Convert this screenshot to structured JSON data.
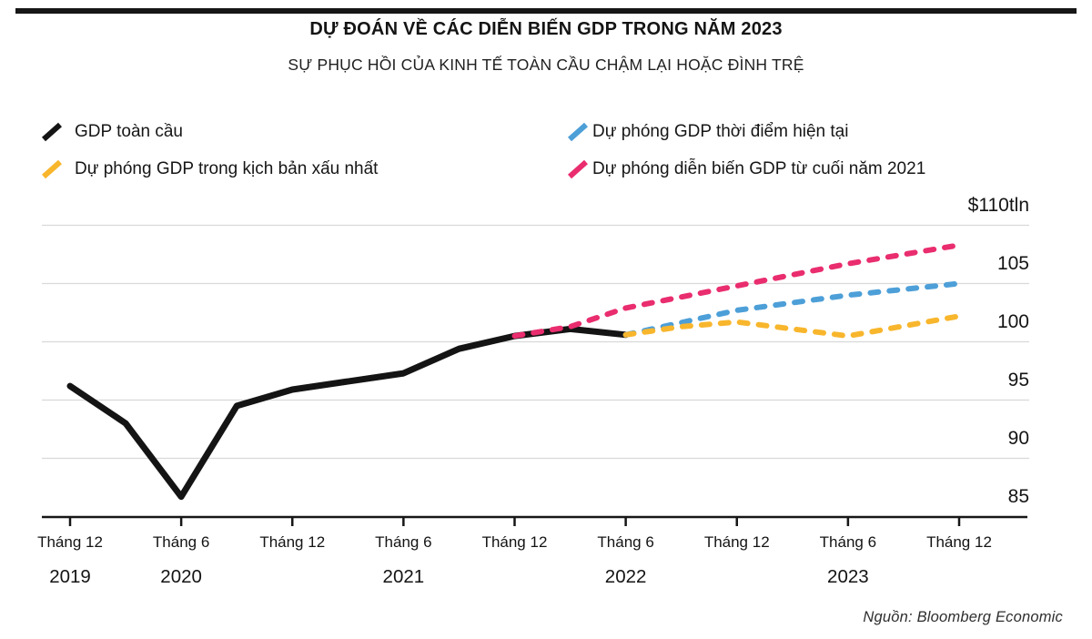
{
  "header": {
    "title": "DỰ ĐOÁN VỀ CÁC DIỄN BIẾN GDP TRONG NĂM 2023",
    "subtitle": "SỰ PHỤC HỒI CỦA KINH TẾ TOÀN CẦU CHẬM LẠI HOẶC ĐÌNH TRỆ"
  },
  "legend": {
    "items": [
      {
        "label": "GDP toàn cầu",
        "color": "#141414"
      },
      {
        "label": "Dự phóng GDP trong kịch bản xấu nhất",
        "color": "#f8b62d"
      },
      {
        "label": "Dự phóng GDP thời điểm hiện tại",
        "color": "#4d9fd8"
      },
      {
        "label": "Dự phóng diễn biến GDP từ cuối năm 2021",
        "color": "#e92d6e"
      }
    ]
  },
  "source": "Nguồn: Bloomberg Economic",
  "colors": {
    "actual": "#141414",
    "worst_case": "#f8b62d",
    "current_forecast": "#4d9fd8",
    "late_2021_forecast": "#e92d6e",
    "grid": "#d9d9d9",
    "axis": "#161616"
  },
  "chart_data": {
    "type": "line",
    "title": "DỰ ĐOÁN VỀ CÁC DIỄN BIẾN GDP TRONG NĂM 2023",
    "subtitle": "SỰ PHỤC HỒI CỦA KINH TẾ TOÀN CẦU CHẬM LẠI HOẶC ĐÌNH TRỆ",
    "unit": "$ trillion",
    "grid": true,
    "legend_position": "top",
    "y_axis": {
      "range": [
        85,
        110
      ],
      "ticks": [
        110,
        105,
        100,
        95,
        90,
        85
      ],
      "tick_labels": [
        "$110tln",
        "105",
        "100",
        "95",
        "90",
        "85"
      ]
    },
    "x_axis": {
      "months_per_tick": 6,
      "tick_labels": [
        "Tháng 12",
        "Tháng 6",
        "Tháng 12",
        "Tháng 6",
        "Tháng 12",
        "Tháng 6",
        "Tháng 12",
        "Tháng 6",
        "Tháng 12"
      ],
      "year_labels": [
        {
          "text": "2019",
          "tick": 0
        },
        {
          "text": "2020",
          "tick": 1
        },
        {
          "text": "2021",
          "tick": 3
        },
        {
          "text": "2022",
          "tick": 5
        },
        {
          "text": "2023",
          "tick": 7
        }
      ]
    },
    "series": [
      {
        "name": "GDP toàn cầu",
        "color": "#141414",
        "dashed": false,
        "points_months_vs_tln": [
          [
            0,
            96.2
          ],
          [
            3,
            93.0
          ],
          [
            6,
            86.7
          ],
          [
            9,
            94.5
          ],
          [
            12,
            95.9
          ],
          [
            18,
            97.3
          ],
          [
            21,
            99.4
          ],
          [
            24,
            100.5
          ],
          [
            27,
            101.1
          ],
          [
            30,
            100.6
          ]
        ]
      },
      {
        "name": "Dự phóng diễn biến GDP từ cuối năm 2021",
        "color": "#e92d6e",
        "dashed": true,
        "points_months_vs_tln": [
          [
            24,
            100.5
          ],
          [
            27,
            101.3
          ],
          [
            30,
            102.9
          ],
          [
            36,
            104.8
          ],
          [
            42,
            106.7
          ],
          [
            48,
            108.3
          ]
        ]
      },
      {
        "name": "Dự phóng GDP thời điểm hiện tại",
        "color": "#4d9fd8",
        "dashed": true,
        "points_months_vs_tln": [
          [
            30,
            100.6
          ],
          [
            36,
            102.7
          ],
          [
            42,
            104.0
          ],
          [
            48,
            105.0
          ]
        ]
      },
      {
        "name": "Dự phóng GDP trong kịch bản xấu nhất",
        "color": "#f8b62d",
        "dashed": true,
        "points_months_vs_tln": [
          [
            30,
            100.6
          ],
          [
            33,
            101.3
          ],
          [
            36,
            101.7
          ],
          [
            42,
            100.5
          ],
          [
            48,
            102.2
          ]
        ]
      }
    ]
  }
}
